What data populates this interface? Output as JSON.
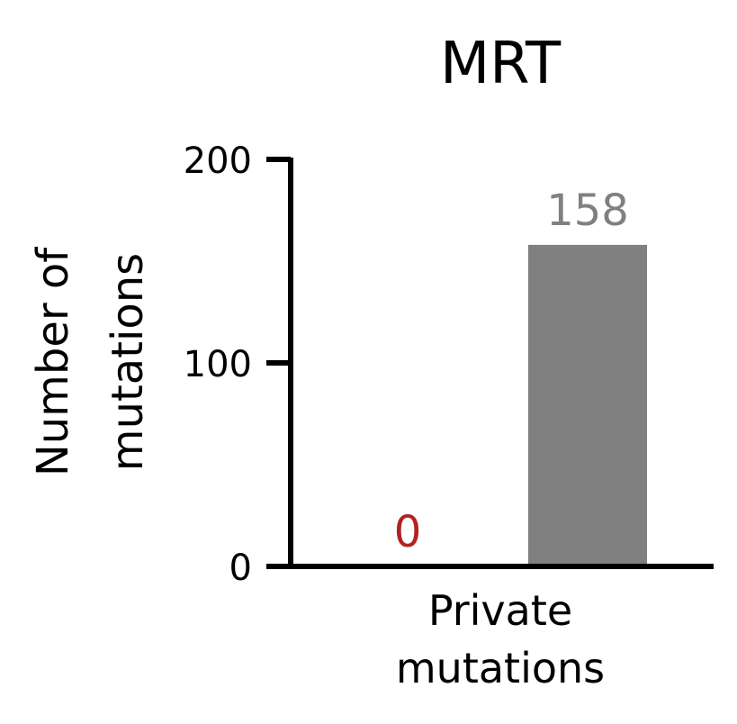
{
  "chart_data": {
    "type": "bar",
    "title": "MRT",
    "ylabel_lines": [
      "Number of",
      "mutations"
    ],
    "category_label_lines": [
      "Private",
      "mutations"
    ],
    "ylim": [
      0,
      200
    ],
    "yticks": [
      0,
      100,
      200
    ],
    "grid": false,
    "series": [
      {
        "values": [
          0
        ],
        "color": "#b22222",
        "label_color": "#b22222"
      },
      {
        "values": [
          158
        ],
        "color": "#808080",
        "label_color": "#808080"
      }
    ],
    "data_labels": [
      "0",
      "158"
    ]
  }
}
